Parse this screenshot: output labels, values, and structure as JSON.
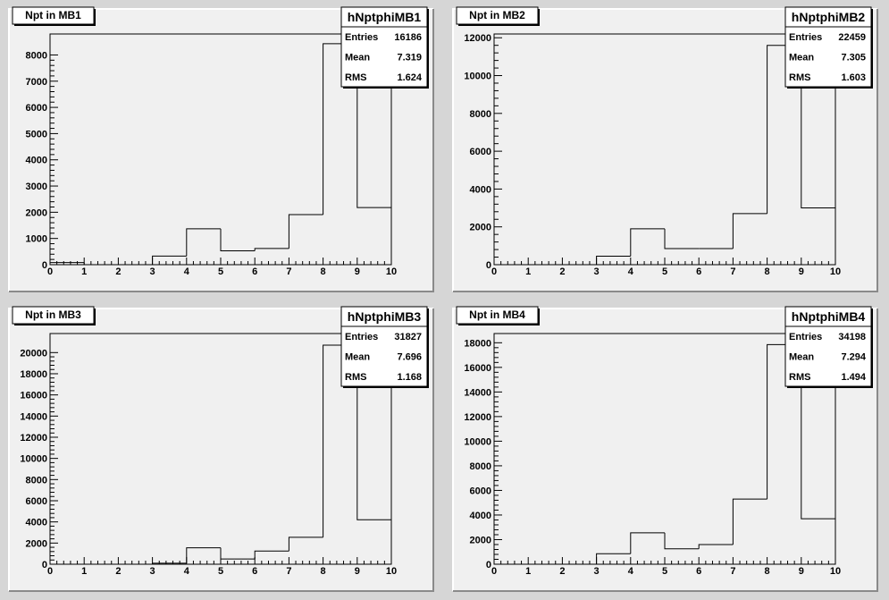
{
  "chart_data": [
    {
      "type": "histogram",
      "title": "Npt in MB1",
      "x": [
        0,
        1,
        2,
        3,
        4,
        5,
        6,
        7,
        8,
        9
      ],
      "values": [
        80,
        0,
        0,
        330,
        1370,
        530,
        620,
        1910,
        8430,
        2180
      ],
      "xlim": [
        0,
        10
      ],
      "ylim": [
        0,
        8800
      ],
      "xticks": [
        0,
        1,
        2,
        3,
        4,
        5,
        6,
        7,
        8,
        9,
        10
      ],
      "yticks": [
        0,
        1000,
        2000,
        3000,
        4000,
        5000,
        6000,
        7000,
        8000
      ],
      "stats": {
        "name": "hNptphiMB1",
        "rows": [
          {
            "label": "Entries",
            "value": "16186"
          },
          {
            "label": "Mean",
            "value": "7.319"
          },
          {
            "label": "RMS",
            "value": "1.624"
          }
        ]
      }
    },
    {
      "type": "histogram",
      "title": "Npt in MB2",
      "x": [
        0,
        1,
        2,
        3,
        4,
        5,
        6,
        7,
        8,
        9
      ],
      "values": [
        0,
        0,
        0,
        450,
        1900,
        850,
        850,
        2700,
        11600,
        3000
      ],
      "xlim": [
        0,
        10
      ],
      "ylim": [
        0,
        12200
      ],
      "xticks": [
        0,
        1,
        2,
        3,
        4,
        5,
        6,
        7,
        8,
        9,
        10
      ],
      "yticks": [
        0,
        2000,
        4000,
        6000,
        8000,
        10000,
        12000
      ],
      "stats": {
        "name": "hNptphiMB2",
        "rows": [
          {
            "label": "Entries",
            "value": "22459"
          },
          {
            "label": "Mean",
            "value": "7.305"
          },
          {
            "label": "RMS",
            "value": "1.603"
          }
        ]
      }
    },
    {
      "type": "histogram",
      "title": "Npt in MB3",
      "x": [
        0,
        1,
        2,
        3,
        4,
        5,
        6,
        7,
        8,
        9
      ],
      "values": [
        0,
        0,
        0,
        100,
        1550,
        500,
        1250,
        2550,
        20700,
        4200
      ],
      "xlim": [
        0,
        10
      ],
      "ylim": [
        0,
        21800
      ],
      "xticks": [
        0,
        1,
        2,
        3,
        4,
        5,
        6,
        7,
        8,
        9,
        10
      ],
      "yticks": [
        0,
        2000,
        4000,
        6000,
        8000,
        10000,
        12000,
        14000,
        16000,
        18000,
        20000
      ],
      "stats": {
        "name": "hNptphiMB3",
        "rows": [
          {
            "label": "Entries",
            "value": "31827"
          },
          {
            "label": "Mean",
            "value": "7.696"
          },
          {
            "label": "RMS",
            "value": "1.168"
          }
        ]
      }
    },
    {
      "type": "histogram",
      "title": "Npt in MB4",
      "x": [
        0,
        1,
        2,
        3,
        4,
        5,
        6,
        7,
        8,
        9
      ],
      "values": [
        0,
        0,
        0,
        850,
        2550,
        1250,
        1600,
        5300,
        17850,
        3700
      ],
      "xlim": [
        0,
        10
      ],
      "ylim": [
        0,
        18750
      ],
      "xticks": [
        0,
        1,
        2,
        3,
        4,
        5,
        6,
        7,
        8,
        9,
        10
      ],
      "yticks": [
        0,
        2000,
        4000,
        6000,
        8000,
        10000,
        12000,
        14000,
        16000,
        18000
      ],
      "stats": {
        "name": "hNptphiMB4",
        "rows": [
          {
            "label": "Entries",
            "value": "34198"
          },
          {
            "label": "Mean",
            "value": "7.294"
          },
          {
            "label": "RMS",
            "value": "1.494"
          }
        ]
      }
    }
  ]
}
